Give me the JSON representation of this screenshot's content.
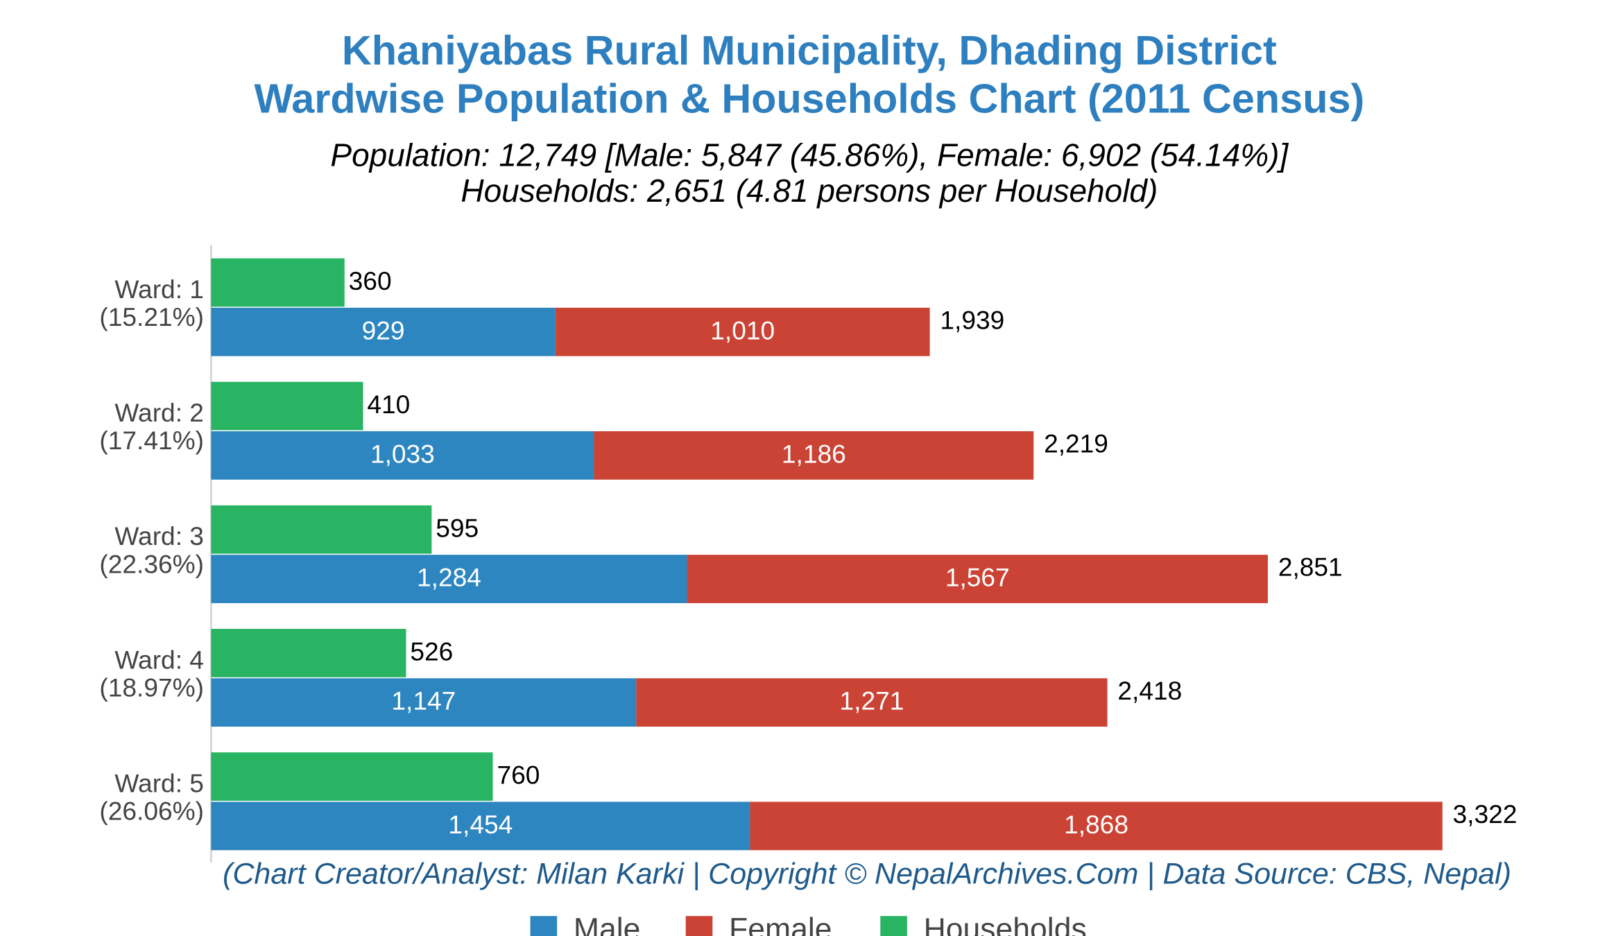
{
  "chart_data": {
    "type": "bar",
    "title": [
      "Khaniyabas Rural Municipality, Dhading District",
      "Wardwise Population & Households Chart (2011 Census)"
    ],
    "subtitle": [
      "Population: 12,749 [Male: 5,847 (45.86%), Female: 6,902 (54.14%)]",
      "Households: 2,651 (4.81 persons per Household)"
    ],
    "categories": [
      "Ward: 1",
      "Ward: 2",
      "Ward: 3",
      "Ward: 4",
      "Ward: 5"
    ],
    "category_shares": [
      "(15.21%)",
      "(17.41%)",
      "(22.36%)",
      "(18.97%)",
      "(26.06%)"
    ],
    "series": [
      {
        "name": "Male",
        "color": "#2e86c1",
        "values": [
          929,
          1033,
          1284,
          1147,
          1454
        ],
        "value_labels": [
          "929",
          "1,033",
          "1,284",
          "1,147",
          "1,454"
        ]
      },
      {
        "name": "Female",
        "color": "#cb4335",
        "values": [
          1010,
          1186,
          1567,
          1271,
          1868
        ],
        "value_labels": [
          "1,010",
          "1,186",
          "1,567",
          "1,271",
          "1,868"
        ]
      },
      {
        "name": "Households",
        "color": "#28b463",
        "values": [
          360,
          410,
          595,
          526,
          760
        ]
      }
    ],
    "totals": [
      1939,
      2219,
      2851,
      2418,
      3322
    ],
    "total_labels": [
      "1,939",
      "2,219",
      "2,851",
      "2,418",
      "3,322"
    ],
    "xlim": [
      0,
      3600
    ],
    "footer": "(Chart Creator/Analyst: Milan Karki | Copyright © NepalArchives.Com | Data Source: CBS, Nepal)"
  }
}
